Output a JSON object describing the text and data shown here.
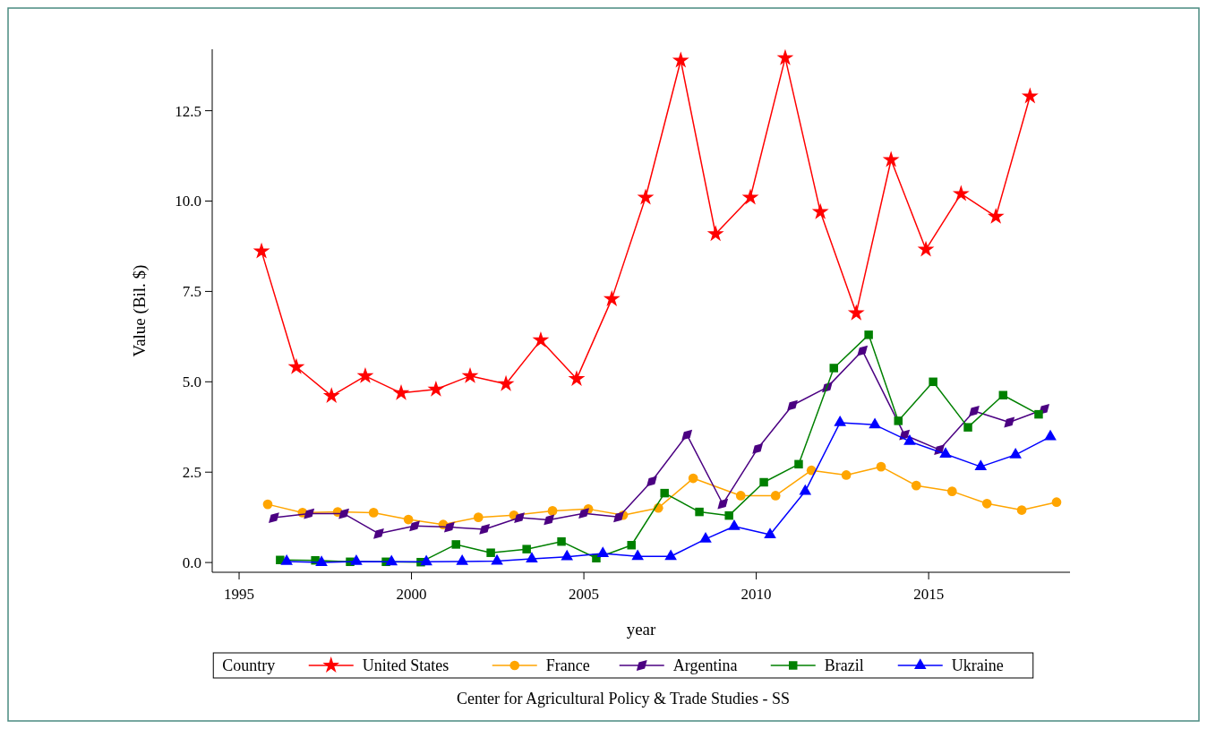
{
  "chart_data": {
    "type": "line",
    "xlabel": "year",
    "ylabel": "Value (Bil. $)",
    "legend_title": "Country",
    "legend": "bottom",
    "grid": false,
    "xlim": [
      1994.22,
      2019.1
    ],
    "xticks": [
      1995,
      2000,
      2005,
      2010,
      2015
    ],
    "ylim": [
      -0.27,
      14.2
    ],
    "yticks": [
      {
        "value": 0,
        "label": "0.0"
      },
      {
        "value": 2.5,
        "label": "2.5"
      },
      {
        "value": 5,
        "label": "5.0"
      },
      {
        "value": 7.5,
        "label": "7.5"
      },
      {
        "value": 10,
        "label": "10.0"
      },
      {
        "value": 12.5,
        "label": "12.5"
      }
    ],
    "annotations": [
      "Center for Agricultural Policy & Trade Studies - SS"
    ],
    "series": [
      {
        "name": "United States",
        "color": "#ff0000",
        "marker": "star",
        "x": [
          1995.65,
          1996.66,
          1997.68,
          1998.66,
          1999.7,
          2000.71,
          2001.7,
          2002.74,
          2003.75,
          2004.79,
          2005.81,
          2006.79,
          2007.81,
          2008.82,
          2009.83,
          2010.84,
          2011.86,
          2012.9,
          2013.91,
          2014.92,
          2015.94,
          2016.95,
          2017.94
        ],
        "values": [
          8.61,
          5.41,
          4.61,
          5.16,
          4.69,
          4.79,
          5.16,
          4.94,
          6.15,
          5.08,
          7.29,
          10.1,
          13.89,
          9.09,
          10.1,
          13.96,
          9.7,
          6.9,
          11.14,
          8.66,
          10.2,
          9.57,
          12.9
        ]
      },
      {
        "name": "France",
        "color": "#ffa500",
        "marker": "circle",
        "x": [
          1995.83,
          1996.84,
          1997.86,
          1998.9,
          1999.91,
          2000.92,
          2001.94,
          2002.97,
          2004.09,
          2005.13,
          2006.14,
          2007.16,
          2008.17,
          2009.55,
          2010.56,
          2011.6,
          2012.61,
          2013.62,
          2014.64,
          2015.68,
          2016.69,
          2017.7,
          2018.71
        ],
        "values": [
          1.61,
          1.38,
          1.4,
          1.38,
          1.19,
          1.05,
          1.25,
          1.31,
          1.43,
          1.48,
          1.31,
          1.51,
          2.33,
          1.85,
          1.85,
          2.55,
          2.42,
          2.65,
          2.13,
          1.97,
          1.63,
          1.45,
          1.67
        ]
      },
      {
        "name": "Argentina",
        "color": "#4b0082",
        "marker": "diamond",
        "x": [
          1996.01,
          1997.03,
          1998.04,
          1999.05,
          2000.09,
          2001.1,
          2002.12,
          2003.13,
          2003.99,
          2005.0,
          2006.01,
          2006.97,
          2007.99,
          2009.03,
          2010.04,
          2011.05,
          2012.06,
          2013.08,
          2014.3,
          2015.31,
          2016.32,
          2017.34,
          2018.35
        ],
        "values": [
          1.24,
          1.35,
          1.35,
          0.8,
          1.01,
          0.98,
          0.92,
          1.24,
          1.18,
          1.36,
          1.26,
          2.25,
          3.53,
          1.62,
          3.15,
          4.35,
          4.85,
          5.86,
          3.53,
          3.12,
          4.19,
          3.88,
          4.24
        ]
      },
      {
        "name": "Brazil",
        "color": "#008000",
        "marker": "square",
        "x": [
          1996.19,
          1997.21,
          1998.22,
          1999.26,
          2000.27,
          2001.29,
          2002.3,
          2003.34,
          2004.35,
          2005.36,
          2006.38,
          2007.34,
          2008.35,
          2009.21,
          2010.22,
          2011.23,
          2012.25,
          2013.26,
          2014.12,
          2015.13,
          2016.14,
          2017.16,
          2018.19
        ],
        "values": [
          0.07,
          0.06,
          0.02,
          0.02,
          0.01,
          0.5,
          0.27,
          0.37,
          0.58,
          0.12,
          0.48,
          1.92,
          1.4,
          1.3,
          2.22,
          2.72,
          5.38,
          6.3,
          3.92,
          5.0,
          3.74,
          4.63,
          4.1
        ]
      },
      {
        "name": "Ukraine",
        "color": "#0000ff",
        "marker": "triangle",
        "x": [
          1996.38,
          1997.39,
          1998.4,
          1999.42,
          2000.43,
          2001.47,
          2002.48,
          2003.49,
          2004.51,
          2005.55,
          2006.56,
          2007.52,
          2008.53,
          2009.36,
          2010.4,
          2011.42,
          2012.43,
          2013.44,
          2014.45,
          2015.49,
          2016.51,
          2017.52,
          2018.53
        ],
        "values": [
          0.03,
          0.0,
          0.03,
          0.02,
          0.02,
          0.03,
          0.04,
          0.1,
          0.16,
          0.25,
          0.17,
          0.17,
          0.65,
          1.0,
          0.77,
          1.97,
          3.87,
          3.81,
          3.35,
          3.0,
          2.65,
          2.98,
          3.48
        ]
      }
    ]
  }
}
